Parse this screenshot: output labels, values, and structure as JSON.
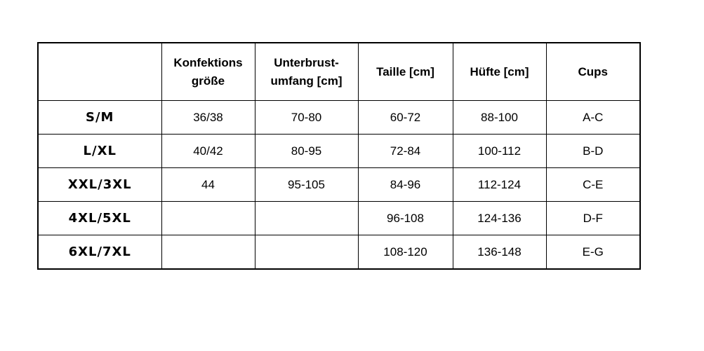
{
  "headers": [
    "",
    "Konfektions größe",
    "Unterbrust- umfang [cm]",
    "Taille [cm]",
    "Hüfte [cm]",
    "Cups"
  ],
  "header_lines": [
    [
      ""
    ],
    [
      "Konfektions",
      "größe"
    ],
    [
      "Unterbrust-",
      "umfang [cm]"
    ],
    [
      "Taille [cm]"
    ],
    [
      "Hüfte [cm]"
    ],
    [
      "Cups"
    ]
  ],
  "rows": [
    [
      "S/M",
      "36/38",
      "70-80",
      "60-72",
      "88-100",
      "A-C"
    ],
    [
      "L/XL",
      "40/42",
      "80-95",
      "72-84",
      "100-112",
      "B-D"
    ],
    [
      "XXL/3XL",
      "44",
      "95-105",
      "84-96",
      "112-124",
      "C-E"
    ],
    [
      "4XL/5XL",
      "",
      "",
      "96-108",
      "124-136",
      "D-F"
    ],
    [
      "6XL/7XL",
      "",
      "",
      "108-120",
      "136-148",
      "E-G"
    ]
  ]
}
